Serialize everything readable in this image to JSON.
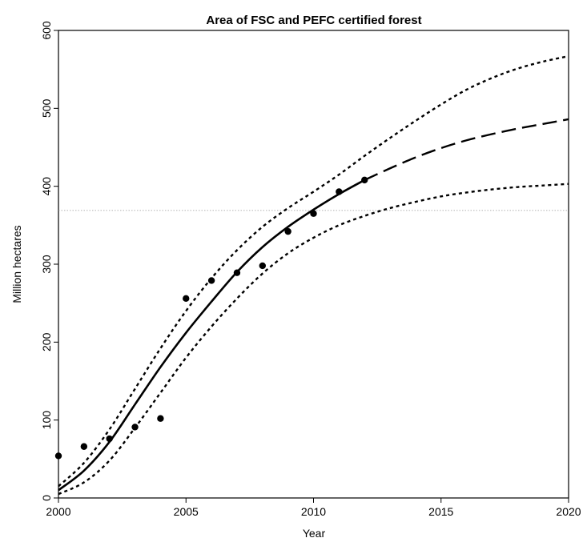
{
  "chart_data": {
    "type": "line",
    "title": "Area of FSC and PEFC certified forest",
    "xlabel": "Year",
    "ylabel": "Million hectares",
    "xlim": [
      2000,
      2020
    ],
    "ylim": [
      0,
      600
    ],
    "xticks": [
      2000,
      2005,
      2010,
      2015,
      2020
    ],
    "yticks": [
      0,
      100,
      200,
      300,
      400,
      500,
      600
    ],
    "grid": false,
    "legend": "none",
    "reference_line": {
      "y": 369,
      "style": "dotted",
      "color": "#999999"
    },
    "observed_points": {
      "x": [
        2000,
        2001,
        2002,
        2003,
        2004,
        2005,
        2006,
        2007,
        2008,
        2009,
        2010,
        2011,
        2012
      ],
      "y": [
        54,
        66,
        76,
        91,
        102,
        256,
        279,
        289,
        298,
        342,
        365,
        393,
        408
      ]
    },
    "series": [
      {
        "style": "solid",
        "x": [
          2000,
          2001,
          2002,
          2003,
          2004,
          2005,
          2006,
          2007,
          2008,
          2009,
          2010,
          2011,
          2012
        ],
        "y": [
          10,
          35,
          72,
          120,
          168,
          212,
          252,
          290,
          322,
          348,
          370,
          390,
          408
        ]
      },
      {
        "style": "dashed",
        "x": [
          2012,
          2013,
          2014,
          2015,
          2016,
          2017,
          2018,
          2019,
          2020
        ],
        "y": [
          408,
          423,
          437,
          449,
          459,
          467,
          474,
          480,
          486
        ]
      },
      {
        "style": "dotted",
        "x": [
          2000,
          2001,
          2002,
          2003,
          2004,
          2005,
          2006,
          2007,
          2008,
          2009,
          2010,
          2011,
          2012,
          2013,
          2014,
          2015,
          2016,
          2017,
          2018,
          2019,
          2020
        ],
        "y": [
          15,
          45,
          88,
          140,
          192,
          240,
          282,
          318,
          348,
          372,
          393,
          415,
          439,
          462,
          484,
          505,
          524,
          539,
          551,
          560,
          567
        ]
      },
      {
        "style": "dotted",
        "x": [
          2000,
          2001,
          2002,
          2003,
          2004,
          2005,
          2006,
          2007,
          2008,
          2009,
          2010,
          2011,
          2012,
          2013,
          2014,
          2015,
          2016,
          2017,
          2018,
          2019,
          2020
        ],
        "y": [
          5,
          20,
          48,
          90,
          135,
          180,
          220,
          256,
          288,
          314,
          334,
          350,
          362,
          372,
          380,
          387,
          392,
          396,
          399,
          401,
          403
        ]
      }
    ],
    "colors": {
      "line": "#000000",
      "reference": "#999999"
    }
  }
}
